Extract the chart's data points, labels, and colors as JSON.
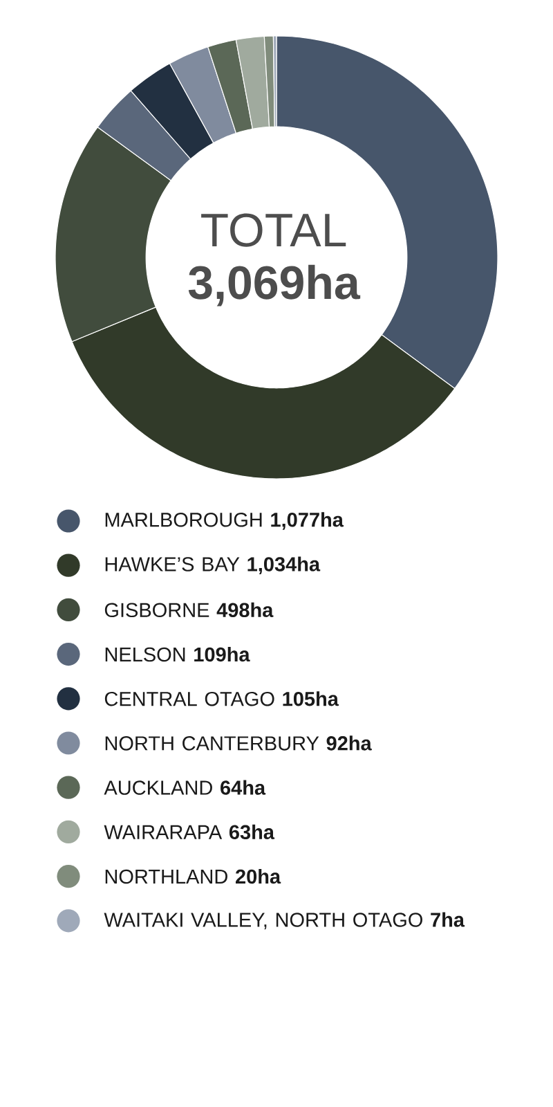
{
  "chart_data": {
    "type": "donut",
    "categories": [
      "MARLBOROUGH",
      "HAWKE’S BAY",
      "GISBORNE",
      "NELSON",
      "CENTRAL OTAGO",
      "NORTH CANTERBURY",
      "AUCKLAND",
      "WAIRARAPA",
      "NORTHLAND",
      "WAITAKI VALLEY, NORTH OTAGO"
    ],
    "values": [
      1077,
      1034,
      498,
      109,
      105,
      92,
      64,
      63,
      20,
      7
    ],
    "value_labels": [
      "1,077ha",
      "1,034ha",
      "498ha",
      "109ha",
      "105ha",
      "92ha",
      "64ha",
      "63ha",
      "20ha",
      "7ha"
    ],
    "colors": [
      "#47566b",
      "#313a29",
      "#414c3d",
      "#5a677b",
      "#223041",
      "#808b9e",
      "#5b6857",
      "#a0aa9e",
      "#808c7c",
      "#9fa9b9"
    ],
    "annotations": [
      "TOTAL",
      "3,069ha"
    ],
    "legend": "bottom"
  }
}
